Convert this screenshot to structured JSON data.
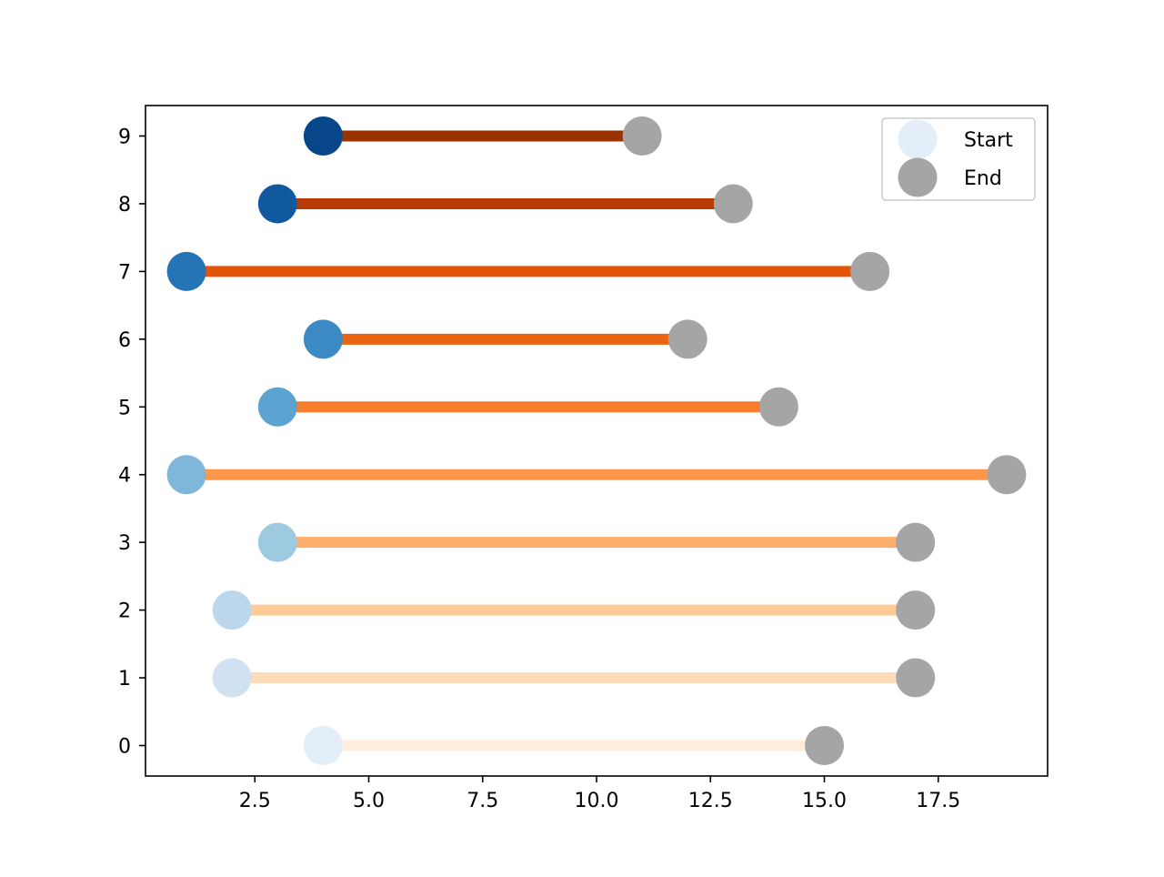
{
  "chart_data": {
    "type": "scatter",
    "subtype": "dumbbell",
    "title": "",
    "xlabel": "",
    "ylabel": "",
    "xlim": [
      0.1,
      19.9
    ],
    "ylim": [
      -0.45,
      9.45
    ],
    "xticks": [
      2.5,
      5.0,
      7.5,
      10.0,
      12.5,
      15.0,
      17.5
    ],
    "xtick_labels": [
      "2.5",
      "5.0",
      "7.5",
      "10.0",
      "12.5",
      "15.0",
      "17.5"
    ],
    "yticks": [
      0,
      1,
      2,
      3,
      4,
      5,
      6,
      7,
      8,
      9
    ],
    "ytick_labels": [
      "0",
      "1",
      "2",
      "3",
      "4",
      "5",
      "6",
      "7",
      "8",
      "9"
    ],
    "grid": false,
    "legend_position": "top-right",
    "series": [
      {
        "name": "Start",
        "x": [
          4,
          2,
          2,
          3,
          1,
          3,
          4,
          1,
          3,
          4
        ],
        "y": [
          0,
          1,
          2,
          3,
          4,
          5,
          6,
          7,
          8,
          9
        ],
        "legend_color": "#e3eef9",
        "colors": [
          "#e3eef9",
          "#d0e1f2",
          "#bcd7eb",
          "#9ecae1",
          "#7fb7da",
          "#5ba3d0",
          "#3c8ac3",
          "#2474b6",
          "#11599f",
          "#08468a"
        ]
      },
      {
        "name": "End",
        "x": [
          15,
          17,
          17,
          17,
          19,
          14,
          12,
          16,
          13,
          11
        ],
        "y": [
          0,
          1,
          2,
          3,
          4,
          5,
          6,
          7,
          8,
          9
        ],
        "legend_color": "#a5a5a5",
        "colors": [
          "#a5a5a5",
          "#a5a5a5",
          "#a5a5a5",
          "#a5a5a5",
          "#a5a5a5",
          "#a5a5a5",
          "#a5a5a5",
          "#a5a5a5",
          "#a5a5a5",
          "#a5a5a5"
        ]
      }
    ],
    "line_colors": [
      "#feeddd",
      "#fddcba",
      "#fdc995",
      "#fdad6c",
      "#fd9649",
      "#f77d2c",
      "#ea6412",
      "#e25508",
      "#b63c03",
      "#993103"
    ]
  }
}
